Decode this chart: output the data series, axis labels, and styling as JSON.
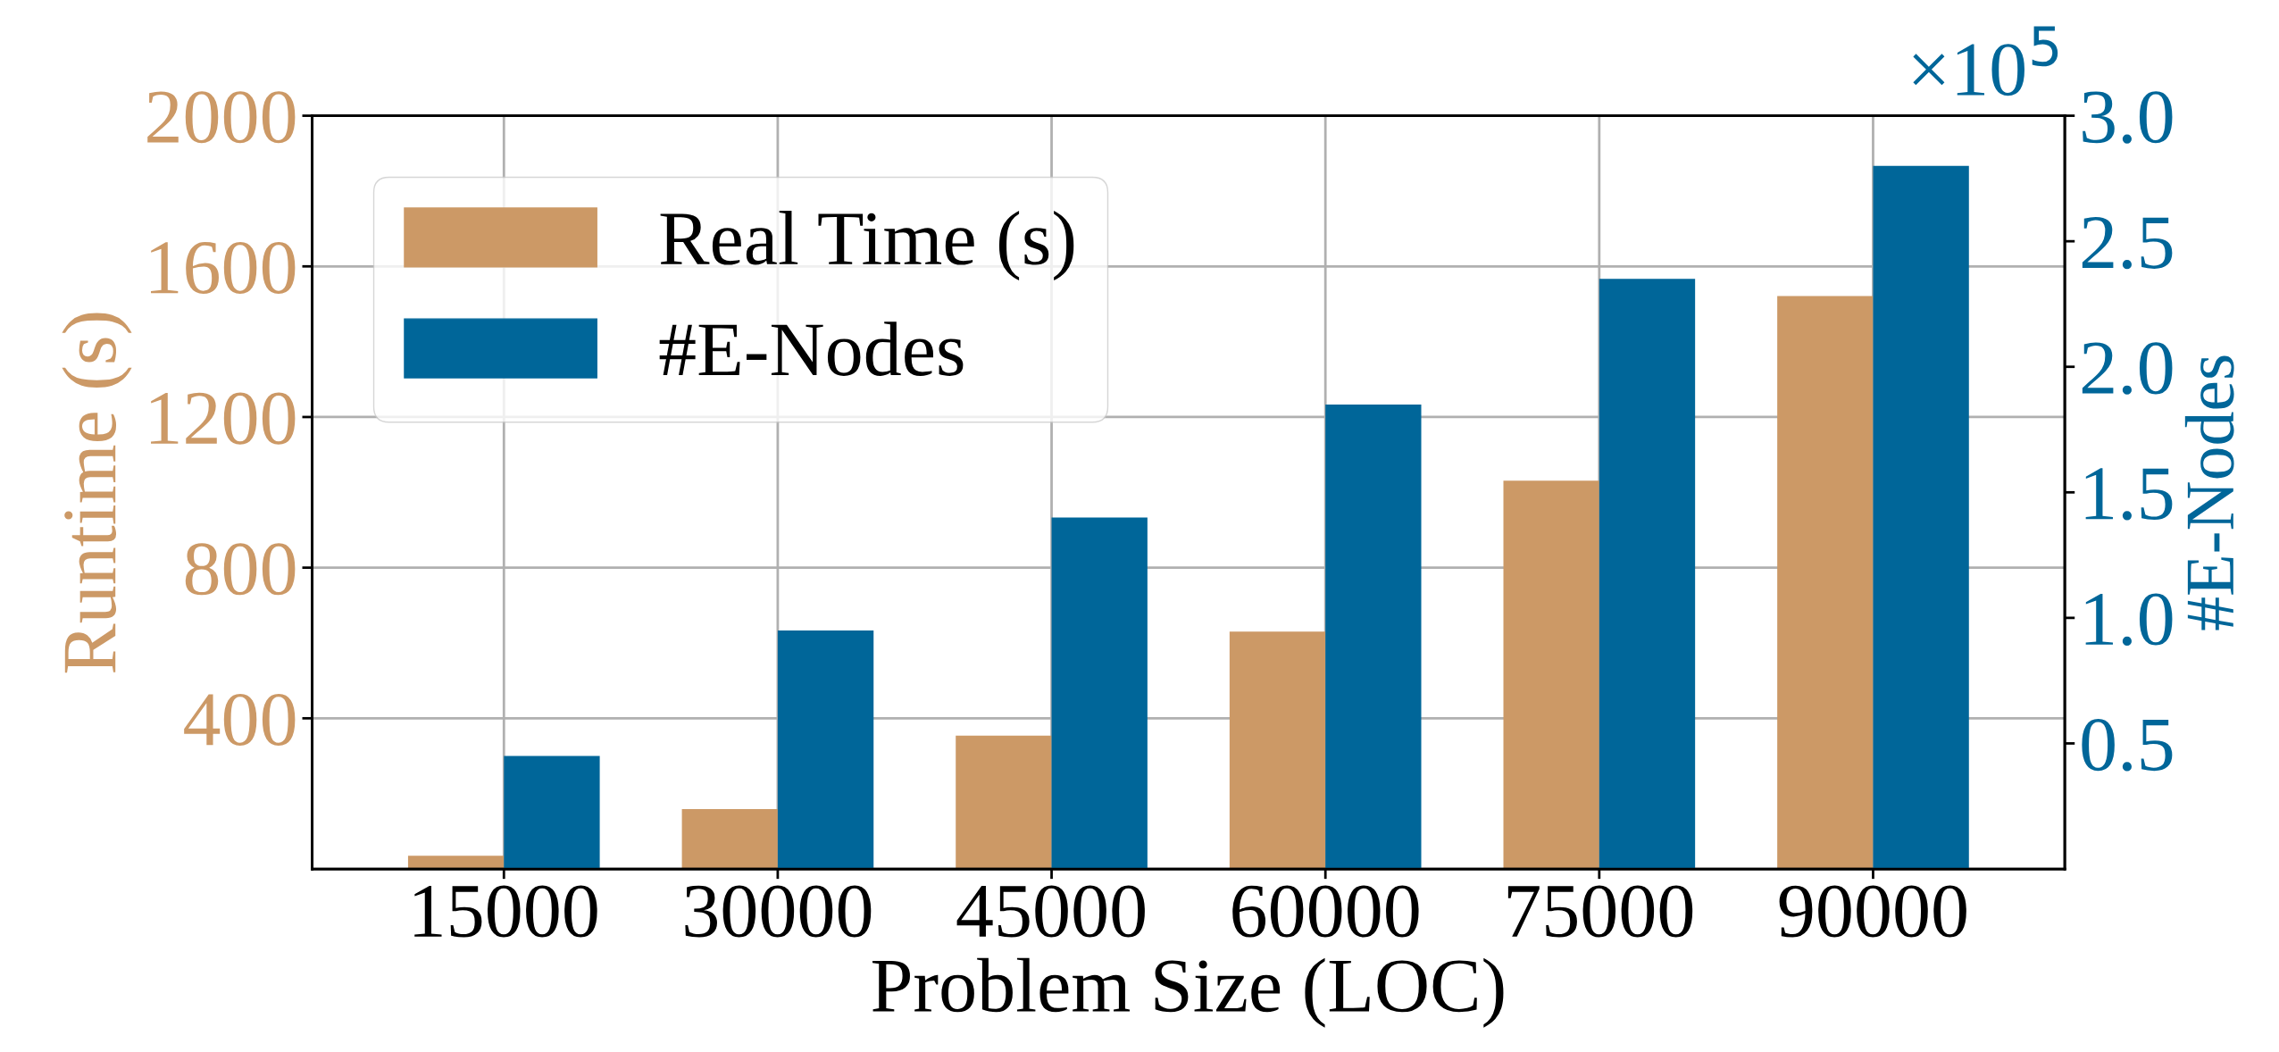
{
  "chart_data": {
    "type": "bar",
    "xlabel": "Problem Size (LOC)",
    "ylabel": "Runtime (s)",
    "y2label": "#E-Nodes",
    "categories": [
      "15000",
      "30000",
      "45000",
      "60000",
      "75000",
      "90000"
    ],
    "series": [
      {
        "name": "Real Time (s)",
        "color": "#cc9966",
        "values": [
          35,
          159,
          354,
          630,
          1031,
          1521
        ]
      },
      {
        "name": "#E-Nodes",
        "color": "#006699",
        "axis": "y2",
        "values": [
          0.45,
          0.95,
          1.4,
          1.85,
          2.35,
          2.8
        ]
      }
    ],
    "ylim": [
      0,
      2000
    ],
    "yticks": [
      400,
      800,
      1200,
      1600,
      2000
    ],
    "y2lim": [
      0,
      3
    ],
    "y2ticks": [
      0.5,
      {
        "value": 1,
        "label": "1.0"
      },
      1.5,
      {
        "value": 2,
        "label": "2.0"
      },
      2.5,
      {
        "value": 3,
        "label": "3.0"
      }
    ],
    "annotations": [
      "×10$^{5}$"
    ],
    "grid": true,
    "legend": "top left"
  }
}
